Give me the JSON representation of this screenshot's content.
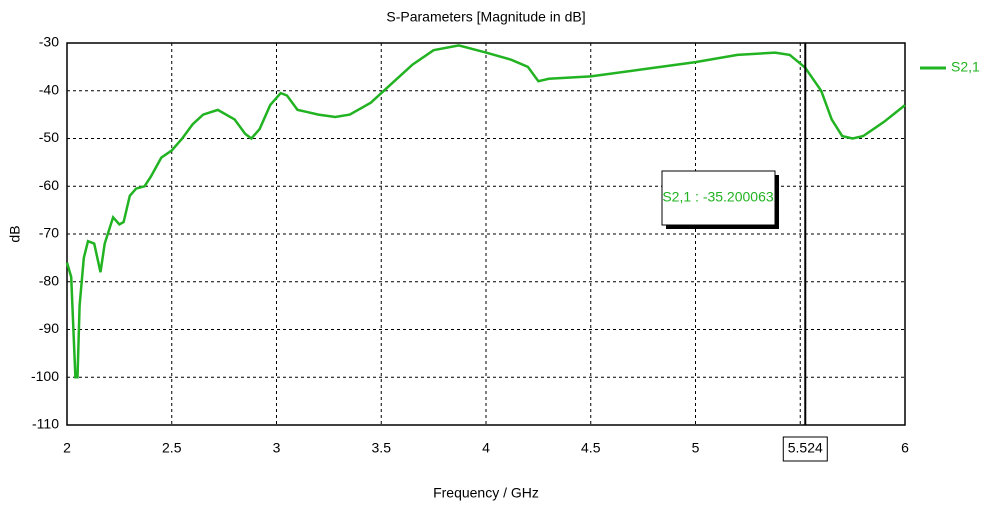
{
  "chart_data": {
    "type": "line",
    "title": "S-Parameters [Magnitude in dB]",
    "x_label": "Frequency / GHz",
    "y_label": "dB",
    "x": [
      2.0,
      2.02,
      2.04,
      2.05,
      2.06,
      2.08,
      2.1,
      2.13,
      2.16,
      2.18,
      2.22,
      2.25,
      2.27,
      2.3,
      2.33,
      2.37,
      2.4,
      2.45,
      2.5,
      2.55,
      2.6,
      2.65,
      2.72,
      2.8,
      2.85,
      2.88,
      2.92,
      2.97,
      3.02,
      3.05,
      3.1,
      3.15,
      3.2,
      3.28,
      3.35,
      3.45,
      3.55,
      3.65,
      3.75,
      3.87,
      4.0,
      4.12,
      4.2,
      4.25,
      4.3,
      4.5,
      4.75,
      5.0,
      5.2,
      5.38,
      5.45,
      5.524,
      5.6,
      5.65,
      5.7,
      5.75,
      5.8,
      5.9,
      6.0
    ],
    "series": [
      {
        "name": "S2,1",
        "color": "#22b322",
        "values": [
          -76,
          -79,
          -100,
          -100,
          -85,
          -75,
          -71.5,
          -72,
          -78,
          -72,
          -66.5,
          -68,
          -67.5,
          -62,
          -60.5,
          -60,
          -58,
          -54,
          -52.5,
          -50,
          -47,
          -45,
          -44,
          -46,
          -49,
          -50,
          -48,
          -43,
          -40.5,
          -41,
          -44,
          -44.5,
          -45,
          -45.5,
          -45,
          -42.5,
          -38.5,
          -34.5,
          -31.5,
          -30.5,
          -32,
          -33.5,
          -35,
          -38,
          -37.5,
          -37,
          -35.5,
          -34,
          -32.5,
          -32,
          -32.5,
          -35.2,
          -40,
          -46,
          -49.5,
          -50,
          -49.5,
          -46.5,
          -43
        ]
      }
    ],
    "xlim": [
      2,
      6
    ],
    "xticks": [
      2,
      2.5,
      3,
      3.5,
      4,
      4.5,
      5,
      5.5,
      6
    ],
    "ylim": [
      -110,
      -30
    ],
    "yticks": [
      -110,
      -100,
      -90,
      -80,
      -70,
      -60,
      -50,
      -40,
      -30
    ],
    "grid": true,
    "legend": "right",
    "marker": {
      "x": 5.524,
      "annotation": "S2,1 : -35.200063"
    }
  }
}
